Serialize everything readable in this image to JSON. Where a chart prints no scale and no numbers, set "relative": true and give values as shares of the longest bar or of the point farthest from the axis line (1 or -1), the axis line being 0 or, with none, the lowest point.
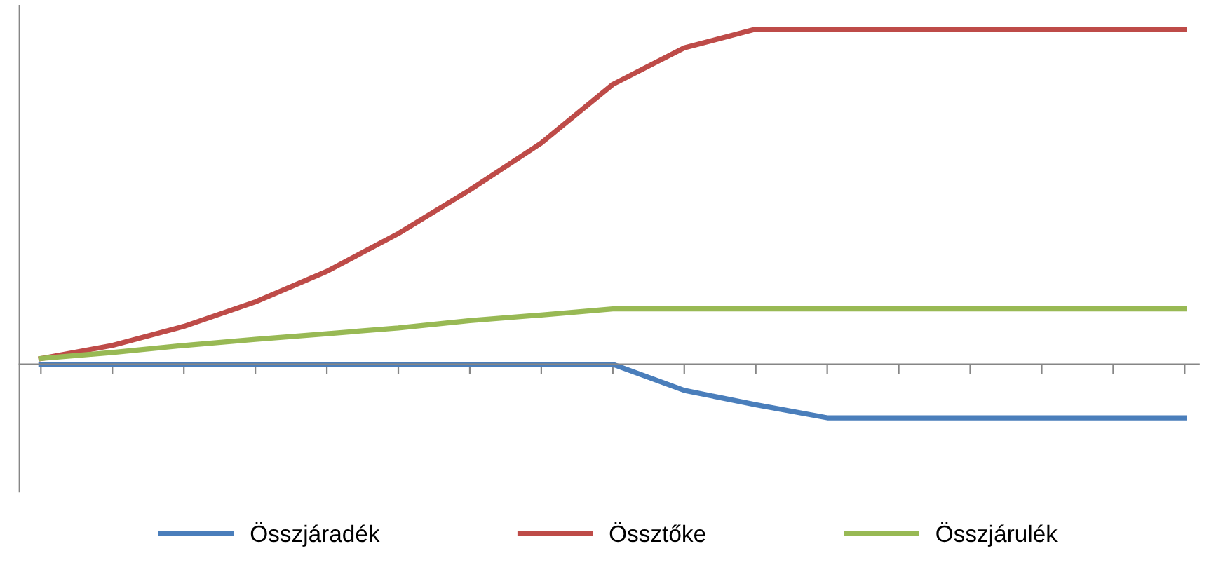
{
  "chart_data": {
    "type": "line",
    "relative": true,
    "legend": "bottom",
    "grid": false,
    "marker": "none",
    "categories": [
      null,
      null,
      null,
      null,
      null,
      null,
      null,
      null,
      null,
      null,
      null,
      null,
      null,
      null,
      null,
      null,
      null
    ],
    "series": [
      {
        "name": "Összjáradék",
        "color": "#4a7ebb",
        "values": [
          0,
          0,
          0,
          0,
          0,
          0,
          0,
          0,
          0,
          -0.078,
          -0.121,
          -0.16,
          -0.16,
          -0.16,
          -0.16,
          -0.16,
          -0.16
        ]
      },
      {
        "name": "Össztőke",
        "color": "#be4b48",
        "values": [
          0.017,
          0.056,
          0.113,
          0.186,
          0.277,
          0.39,
          0.52,
          0.66,
          0.835,
          0.944,
          1,
          1,
          1,
          1,
          1,
          1,
          1
        ]
      },
      {
        "name": "Összjárulék",
        "color": "#98b954",
        "values": [
          0.017,
          0.035,
          0.056,
          0.074,
          0.091,
          0.108,
          0.13,
          0.147,
          0.165,
          0.165,
          0.165,
          0.165,
          0.165,
          0.165,
          0.165,
          0.165,
          0.165
        ]
      }
    ]
  }
}
